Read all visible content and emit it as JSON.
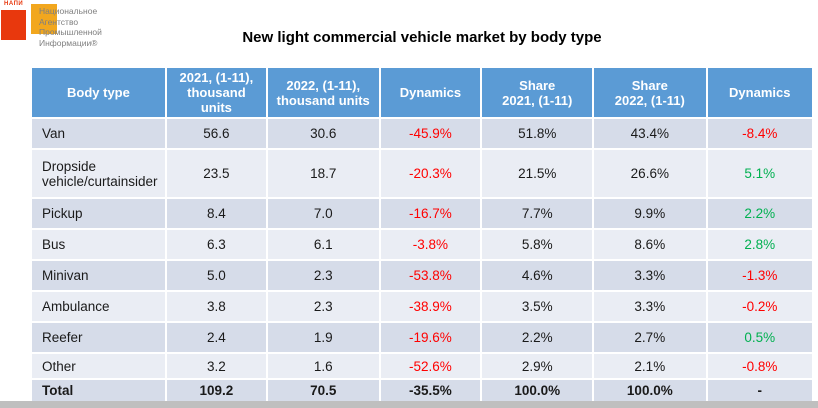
{
  "logo": {
    "brand_small": "НАПИ",
    "text_lines": "Национальное\nАгентство\nПромышленной\nИнформации®",
    "colors": {
      "red_square": "#e8380d",
      "yellow_square": "#f2a71e",
      "text": "#7f7f7f"
    }
  },
  "title": "New light commercial vehicle market by body type",
  "table": {
    "headers": [
      "Body type",
      "2021, (1-11),\nthousand units",
      "2022, (1-11),\nthousand units",
      "Dynamics",
      "Share\n2021, (1-11)",
      "Share\n2022, (1-11)",
      "Dynamics"
    ],
    "rows": [
      {
        "body_type": "Van",
        "y2021": "56.6",
        "y2022": "30.6",
        "dyn_units": "-45.9%",
        "dyn_units_tone": "neg",
        "share2021": "51.8%",
        "share2022": "43.4%",
        "dyn_share": "-8.4%",
        "dyn_share_tone": "neg",
        "band": "dark"
      },
      {
        "body_type": "Dropside vehicle/curtainsider",
        "y2021": "23.5",
        "y2022": "18.7",
        "dyn_units": "-20.3%",
        "dyn_units_tone": "neg",
        "share2021": "21.5%",
        "share2022": "26.6%",
        "dyn_share": "5.1%",
        "dyn_share_tone": "pos",
        "band": "light"
      },
      {
        "body_type": "Pickup",
        "y2021": "8.4",
        "y2022": "7.0",
        "dyn_units": "-16.7%",
        "dyn_units_tone": "neg",
        "share2021": "7.7%",
        "share2022": "9.9%",
        "dyn_share": "2.2%",
        "dyn_share_tone": "pos",
        "band": "dark"
      },
      {
        "body_type": "Bus",
        "y2021": "6.3",
        "y2022": "6.1",
        "dyn_units": "-3.8%",
        "dyn_units_tone": "neg",
        "share2021": "5.8%",
        "share2022": "8.6%",
        "dyn_share": "2.8%",
        "dyn_share_tone": "pos",
        "band": "light"
      },
      {
        "body_type": "Minivan",
        "y2021": "5.0",
        "y2022": "2.3",
        "dyn_units": "-53.8%",
        "dyn_units_tone": "neg",
        "share2021": "4.6%",
        "share2022": "3.3%",
        "dyn_share": "-1.3%",
        "dyn_share_tone": "neg",
        "band": "dark"
      },
      {
        "body_type": "Ambulance",
        "y2021": "3.8",
        "y2022": "2.3",
        "dyn_units": "-38.9%",
        "dyn_units_tone": "neg",
        "share2021": "3.5%",
        "share2022": "3.3%",
        "dyn_share": "-0.2%",
        "dyn_share_tone": "neg",
        "band": "light"
      },
      {
        "body_type": "Reefer",
        "y2021": "2.4",
        "y2022": "1.9",
        "dyn_units": "-19.6%",
        "dyn_units_tone": "neg",
        "share2021": "2.2%",
        "share2022": "2.7%",
        "dyn_share": "0.5%",
        "dyn_share_tone": "pos",
        "band": "dark"
      },
      {
        "body_type": "Other",
        "y2021": "3.2",
        "y2022": "1.6",
        "dyn_units": "-52.6%",
        "dyn_units_tone": "neg",
        "share2021": "2.9%",
        "share2022": "2.1%",
        "dyn_share": "-0.8%",
        "dyn_share_tone": "neg",
        "band": "light"
      },
      {
        "body_type": "Total",
        "y2021": "109.2",
        "y2022": "70.5",
        "dyn_units": "-35.5%",
        "dyn_units_tone": "neutral",
        "share2021": "100.0%",
        "share2022": "100.0%",
        "dyn_share": "-",
        "dyn_share_tone": "neutral",
        "band": "dark"
      }
    ],
    "colors": {
      "header_bg": "#5b9bd5",
      "band_dark": "#d6dce9",
      "band_light": "#eaedf4",
      "negative": "#ff0000",
      "positive": "#00b050"
    }
  },
  "chart_data": {
    "type": "table",
    "title": "New light commercial vehicle market by body type",
    "columns": [
      "Body type",
      "2021, (1-11), thousand units",
      "2022, (1-11), thousand units",
      "Dynamics",
      "Share 2021, (1-11)",
      "Share 2022, (1-11)",
      "Dynamics"
    ],
    "rows": [
      [
        "Van",
        56.6,
        30.6,
        "-45.9%",
        "51.8%",
        "43.4%",
        "-8.4%"
      ],
      [
        "Dropside vehicle/curtainsider",
        23.5,
        18.7,
        "-20.3%",
        "21.5%",
        "26.6%",
        "5.1%"
      ],
      [
        "Pickup",
        8.4,
        7.0,
        "-16.7%",
        "7.7%",
        "9.9%",
        "2.2%"
      ],
      [
        "Bus",
        6.3,
        6.1,
        "-3.8%",
        "5.8%",
        "8.6%",
        "2.8%"
      ],
      [
        "Minivan",
        5.0,
        2.3,
        "-53.8%",
        "4.6%",
        "3.3%",
        "-1.3%"
      ],
      [
        "Ambulance",
        3.8,
        2.3,
        "-38.9%",
        "3.5%",
        "3.3%",
        "-0.2%"
      ],
      [
        "Reefer",
        2.4,
        1.9,
        "-19.6%",
        "2.2%",
        "2.7%",
        "0.5%"
      ],
      [
        "Other",
        3.2,
        1.6,
        "-52.6%",
        "2.9%",
        "2.1%",
        "-0.8%"
      ],
      [
        "Total",
        109.2,
        70.5,
        "-35.5%",
        "100.0%",
        "100.0%",
        "-"
      ]
    ]
  }
}
